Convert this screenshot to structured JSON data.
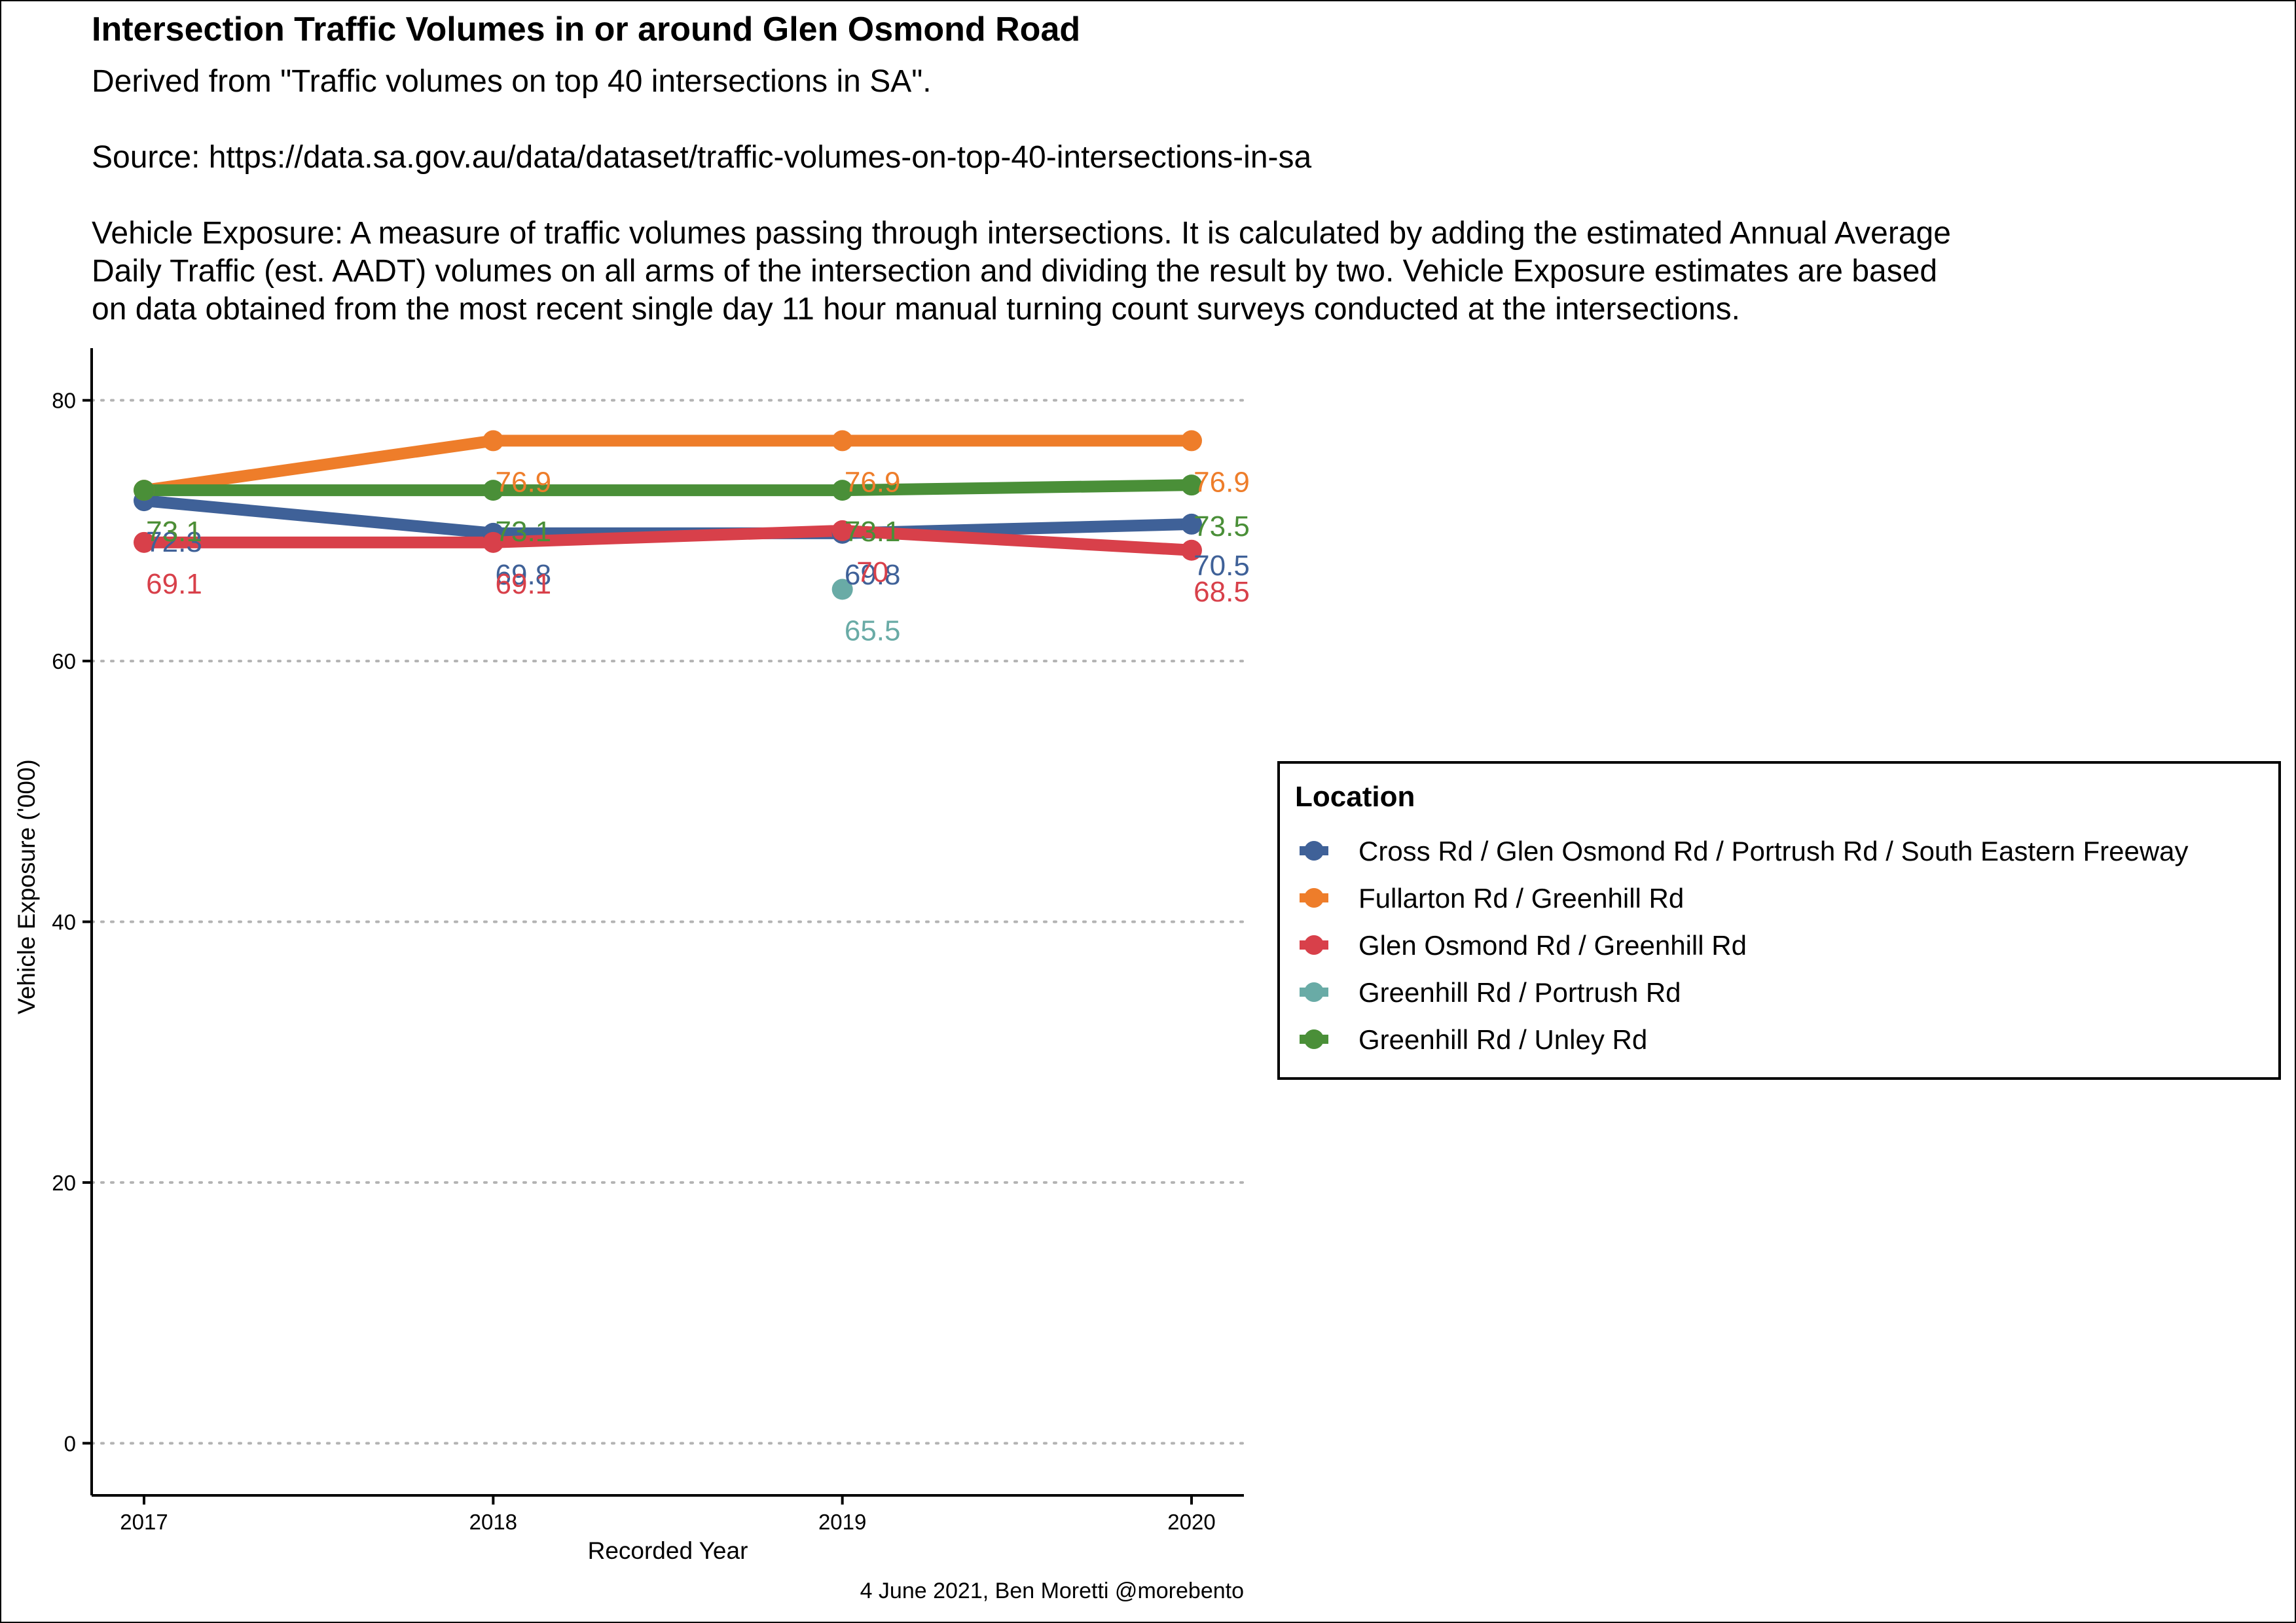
{
  "chart_data": {
    "type": "line",
    "title": "Intersection Traffic Volumes in or around Glen Osmond Road",
    "subtitle_lines": [
      "Derived from \"Traffic volumes on top 40 intersections in SA\".",
      "",
      "Source: https://data.sa.gov.au/data/dataset/traffic-volumes-on-top-40-intersections-in-sa",
      "",
      "Vehicle Exposure: A measure of traffic volumes passing through intersections. It is calculated by adding the estimated Annual Average",
      "Daily Traffic (est. AADT) volumes on all arms of the intersection and dividing the result by two. Vehicle Exposure estimates are based",
      "on data obtained from the most recent single day 11 hour manual turning count surveys conducted at the intersections."
    ],
    "xlabel": "Recorded Year",
    "ylabel": "Vehicle Exposure ('000)",
    "caption": "4 June 2021, Ben Moretti @morebento",
    "x": [
      2017,
      2018,
      2019,
      2020
    ],
    "x_tick_labels": [
      "2017",
      "2018",
      "2019",
      "2020"
    ],
    "y_ticks": [
      0,
      20,
      40,
      60,
      80
    ],
    "y_tick_labels": [
      "0",
      "20",
      "40",
      "60",
      "80"
    ],
    "ylim": [
      -4,
      84
    ],
    "xlim": [
      2016.85,
      2020.15
    ],
    "grid": {
      "y_major": true,
      "style": "dotted"
    },
    "legend": {
      "title": "Location",
      "position": "right"
    },
    "series": [
      {
        "name": "Cross Rd / Glen Osmond Rd / Portrush Rd / South Eastern Freeway",
        "color": "#3f6198",
        "values": [
          72.3,
          69.8,
          69.8,
          70.5
        ],
        "labels": [
          "72.3",
          "69.8",
          "69.8",
          "70.5"
        ]
      },
      {
        "name": "Fullarton Rd / Greenhill Rd",
        "color": "#ee7d2a",
        "values": [
          73.1,
          76.9,
          76.9,
          76.9
        ],
        "labels": [
          "73.1",
          "76.9",
          "76.9",
          "76.9"
        ]
      },
      {
        "name": "Glen Osmond Rd / Greenhill Rd",
        "color": "#d8404a",
        "values": [
          69.1,
          69.1,
          70,
          68.5
        ],
        "labels": [
          "69.1",
          "69.1",
          "70",
          "68.5"
        ]
      },
      {
        "name": "Greenhill Rd / Portrush Rd",
        "color": "#69aba6",
        "values": [
          null,
          null,
          65.5,
          null
        ],
        "labels": [
          null,
          null,
          "65.5",
          null
        ]
      },
      {
        "name": "Greenhill Rd / Unley Rd",
        "color": "#4a8f38",
        "values": [
          73.1,
          73.1,
          73.1,
          73.5
        ],
        "labels": [
          "73.1",
          "73.1",
          "73.1",
          "73.5"
        ]
      }
    ]
  }
}
